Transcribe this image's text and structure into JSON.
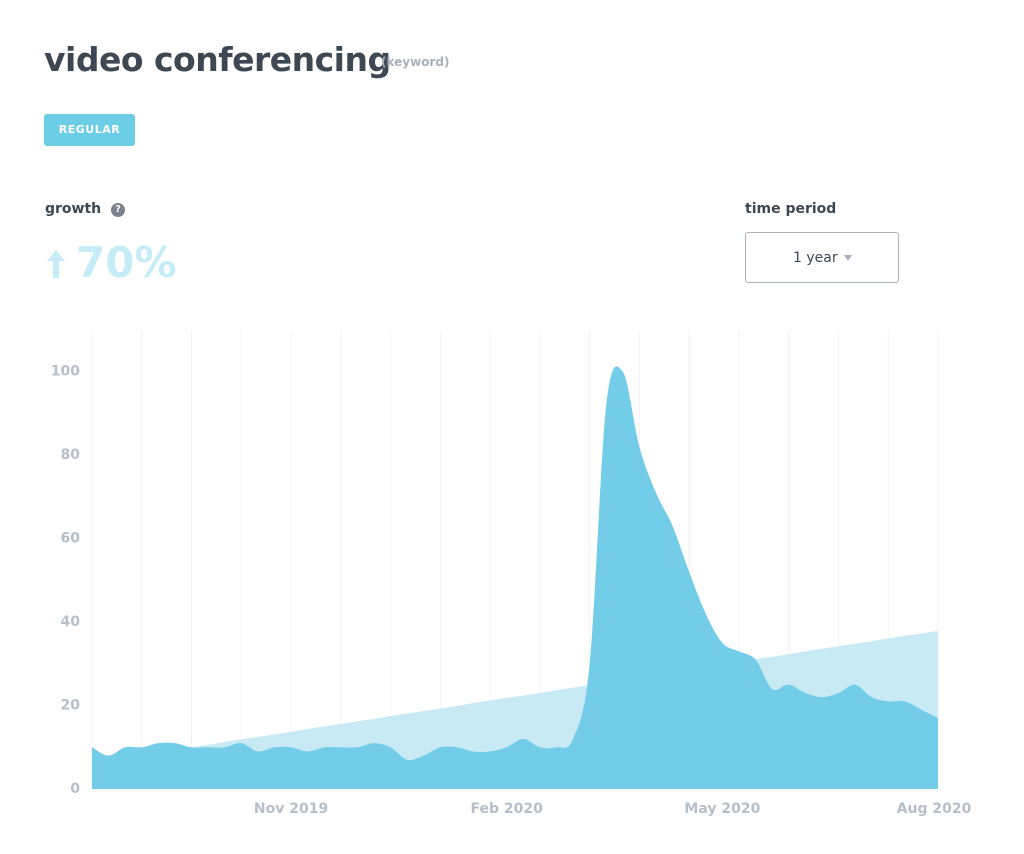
{
  "header": {
    "title": "video conferencing",
    "kind": "(keyword)",
    "badge": "REGULAR"
  },
  "growth": {
    "label": "growth",
    "value": "70%"
  },
  "time_period": {
    "label": "time period",
    "selected": "1 year"
  },
  "chart_data": {
    "type": "area",
    "categories": [
      null,
      null,
      null,
      null,
      null,
      null,
      null,
      null,
      null,
      null,
      null,
      null,
      "Nov 2019",
      null,
      null,
      null,
      null,
      null,
      null,
      null,
      null,
      null,
      null,
      null,
      null,
      "Feb 2020",
      null,
      null,
      null,
      null,
      null,
      null,
      null,
      null,
      null,
      null,
      null,
      null,
      "May 2020",
      null,
      null,
      null,
      null,
      null,
      null,
      null,
      null,
      null,
      null,
      null,
      null,
      "Aug 2020"
    ],
    "series": [
      {
        "color": "#c8eaf5",
        "values": [
          6.3,
          6.9,
          7.5,
          8.2,
          8.8,
          9.4,
          10.0,
          10.6,
          11.3,
          11.9,
          12.5,
          13.1,
          13.7,
          14.4,
          15.0,
          15.6,
          16.2,
          16.8,
          17.5,
          18.1,
          18.7,
          19.3,
          19.9,
          20.6,
          21.2,
          21.8,
          22.4,
          23.0,
          23.7,
          24.3,
          24.9,
          25.5,
          26.1,
          26.8,
          27.4,
          28.0,
          28.6,
          29.2,
          29.9,
          30.5,
          31.1,
          31.7,
          32.3,
          33.0,
          33.6,
          34.2,
          34.8,
          35.4,
          36.1,
          36.7,
          37.3,
          37.9
        ]
      },
      {
        "color": "#74cde8",
        "values": [
          10,
          8,
          10,
          10,
          11,
          11,
          10,
          10,
          10,
          11,
          9,
          10,
          10,
          9,
          10,
          10,
          10,
          11,
          10,
          7,
          8,
          10,
          10,
          9,
          9,
          10,
          12,
          10,
          10,
          12,
          30,
          92,
          100,
          82,
          71,
          63,
          52,
          42,
          35,
          33,
          31,
          24,
          25,
          23,
          22,
          23,
          25,
          22,
          21,
          21,
          19,
          17
        ]
      }
    ],
    "ylim": [
      0,
      110
    ],
    "yticks": [
      0,
      20,
      40,
      60,
      80,
      100
    ]
  }
}
